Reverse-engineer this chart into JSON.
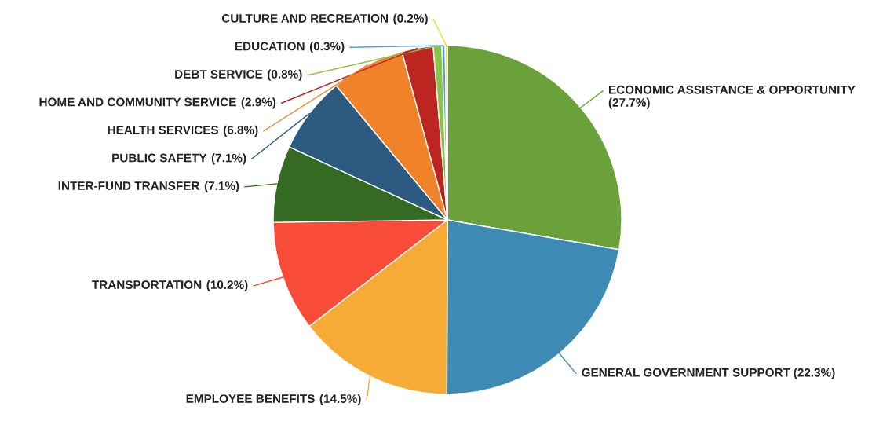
{
  "chart_data": {
    "type": "pie",
    "value_labels": [
      "(27.7%)",
      "(22.3%)",
      "(14.5%)",
      "(10.2%)",
      "(7.1%)",
      "(7.1%)",
      "(6.8%)",
      "(2.9%)",
      "(0.8%)",
      "(0.3%)",
      "(0.2%)"
    ],
    "categories": [
      "ECONOMIC ASSISTANCE & OPPORTUNITY",
      "GENERAL GOVERNMENT SUPPORT",
      "EMPLOYEE BENEFITS",
      "TRANSPORTATION",
      "INTER-FUND TRANSFER",
      "PUBLIC SAFETY",
      "HEALTH SERVICES",
      "HOME AND COMMUNITY SERVICE",
      "DEBT SERVICE",
      "EDUCATION",
      "CULTURE AND RECREATION"
    ],
    "values": [
      27.7,
      22.3,
      14.5,
      10.2,
      7.1,
      7.1,
      6.8,
      2.9,
      0.8,
      0.3,
      0.2
    ],
    "colors": [
      "#6aa13a",
      "#3d8bb5",
      "#f6ab37",
      "#f84c38",
      "#356a22",
      "#2c5a80",
      "#f0832a",
      "#bd2620",
      "#8bc34a",
      "#4aa3d8",
      "#f5d33d"
    ]
  }
}
